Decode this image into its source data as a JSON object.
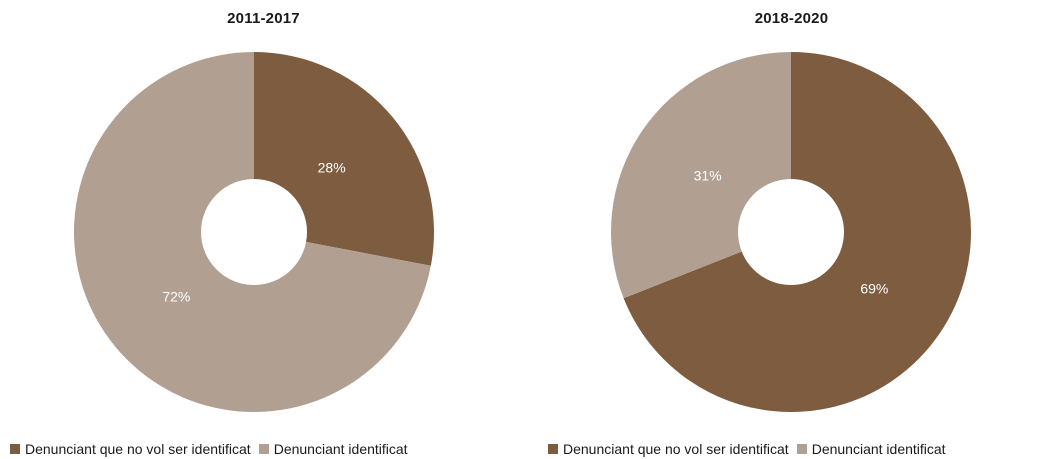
{
  "colors": {
    "unidentified": "#7d5c3f",
    "identified": "#b19f92"
  },
  "chart_data": [
    {
      "type": "pie",
      "title": "2011-2017",
      "categories": [
        "Denunciant que no vol ser identificat",
        "Denunciant identificat"
      ],
      "values": [
        28,
        72
      ],
      "labels": [
        "28%",
        "72%"
      ],
      "donut": true,
      "legend_position": "bottom"
    },
    {
      "type": "pie",
      "title": "2018-2020",
      "categories": [
        "Denunciant que no vol ser identificat",
        "Denunciant identificat"
      ],
      "values": [
        69,
        31
      ],
      "labels": [
        "69%",
        "31%"
      ],
      "donut": true,
      "legend_position": "bottom"
    }
  ]
}
